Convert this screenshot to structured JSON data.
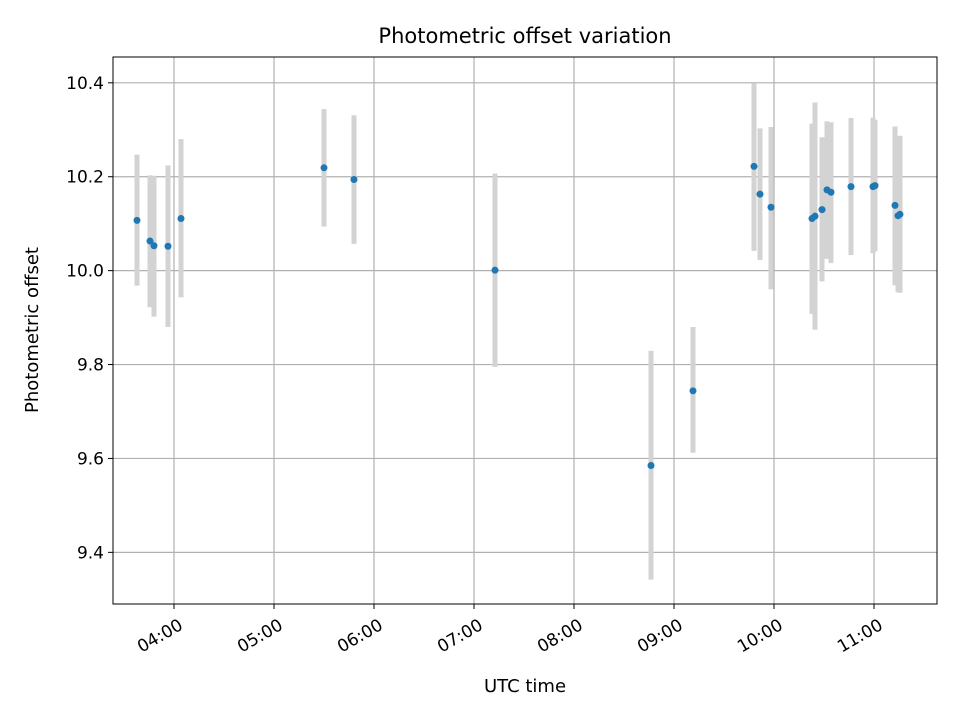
{
  "chart_data": {
    "type": "scatter",
    "title": "Photometric offset variation",
    "xlabel": "UTC time",
    "ylabel": "Photometric offset",
    "xlim_hours": [
      3.39,
      11.63
    ],
    "ylim": [
      9.29,
      10.455
    ],
    "x_ticks": [
      {
        "value": 4,
        "label": "04:00"
      },
      {
        "value": 5,
        "label": "05:00"
      },
      {
        "value": 6,
        "label": "06:00"
      },
      {
        "value": 7,
        "label": "07:00"
      },
      {
        "value": 8,
        "label": "08:00"
      },
      {
        "value": 9,
        "label": "09:00"
      },
      {
        "value": 10,
        "label": "10:00"
      },
      {
        "value": 11,
        "label": "11:00"
      }
    ],
    "y_ticks": [
      {
        "value": 9.4,
        "label": "9.4"
      },
      {
        "value": 9.6,
        "label": "9.6"
      },
      {
        "value": 9.8,
        "label": "9.8"
      },
      {
        "value": 10.0,
        "label": "10.0"
      },
      {
        "value": 10.2,
        "label": "10.2"
      },
      {
        "value": 10.4,
        "label": "10.4"
      }
    ],
    "grid": true,
    "colors": {
      "point": "#1f77b4",
      "errorbar": "#d3d3d3",
      "grid": "#b0b0b0",
      "axis": "#000000"
    },
    "points": [
      {
        "x": 3.63,
        "y": 10.107,
        "ylow": 9.968,
        "yhigh": 10.247
      },
      {
        "x": 3.76,
        "y": 10.063,
        "ylow": 9.922,
        "yhigh": 10.203
      },
      {
        "x": 3.8,
        "y": 10.053,
        "ylow": 9.902,
        "yhigh": 10.202
      },
      {
        "x": 3.94,
        "y": 10.052,
        "ylow": 9.88,
        "yhigh": 10.224
      },
      {
        "x": 4.07,
        "y": 10.111,
        "ylow": 9.943,
        "yhigh": 10.28
      },
      {
        "x": 5.5,
        "y": 10.219,
        "ylow": 10.094,
        "yhigh": 10.344
      },
      {
        "x": 5.8,
        "y": 10.194,
        "ylow": 10.057,
        "yhigh": 10.331
      },
      {
        "x": 7.21,
        "y": 10.001,
        "ylow": 9.795,
        "yhigh": 10.207
      },
      {
        "x": 8.77,
        "y": 9.585,
        "ylow": 9.342,
        "yhigh": 9.829
      },
      {
        "x": 9.19,
        "y": 9.744,
        "ylow": 9.612,
        "yhigh": 9.88
      },
      {
        "x": 9.8,
        "y": 10.222,
        "ylow": 10.042,
        "yhigh": 10.399
      },
      {
        "x": 9.86,
        "y": 10.163,
        "ylow": 10.023,
        "yhigh": 10.303
      },
      {
        "x": 9.97,
        "y": 10.135,
        "ylow": 9.96,
        "yhigh": 10.306
      },
      {
        "x": 10.38,
        "y": 10.111,
        "ylow": 9.908,
        "yhigh": 10.313
      },
      {
        "x": 10.41,
        "y": 10.116,
        "ylow": 9.874,
        "yhigh": 10.358
      },
      {
        "x": 10.48,
        "y": 10.13,
        "ylow": 9.977,
        "yhigh": 10.284
      },
      {
        "x": 10.53,
        "y": 10.172,
        "ylow": 10.025,
        "yhigh": 10.318
      },
      {
        "x": 10.57,
        "y": 10.167,
        "ylow": 10.016,
        "yhigh": 10.316
      },
      {
        "x": 10.77,
        "y": 10.179,
        "ylow": 10.033,
        "yhigh": 10.325
      },
      {
        "x": 10.99,
        "y": 10.179,
        "ylow": 10.037,
        "yhigh": 10.326
      },
      {
        "x": 11.01,
        "y": 10.181,
        "ylow": 10.041,
        "yhigh": 10.321
      },
      {
        "x": 11.21,
        "y": 10.139,
        "ylow": 9.969,
        "yhigh": 10.307
      },
      {
        "x": 11.24,
        "y": 10.117,
        "ylow": 9.954,
        "yhigh": 10.287
      },
      {
        "x": 11.26,
        "y": 10.12,
        "ylow": 9.953,
        "yhigh": 10.287
      }
    ]
  }
}
